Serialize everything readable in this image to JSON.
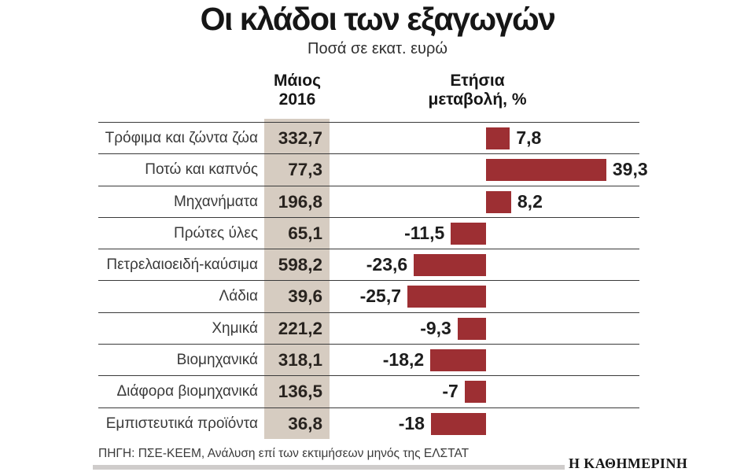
{
  "title": "Οι κλάδοι των εξαγωγών",
  "subtitle": "Ποσά σε εκατ. ευρώ",
  "columns": {
    "value_header": [
      "Μάιος",
      "2016"
    ],
    "change_header": [
      "Ετήσια",
      "μεταβολή, %"
    ]
  },
  "footer": {
    "source": "ΠΗΓΗ: ΠΣΕ-ΚΕΕΜ, Ανάλυση επί των εκτιμήσεων μηνός της ΕΛΣΤΑΤ",
    "brand": "Η ΚΑΘΗΜΕΡΙΝΗ"
  },
  "colors": {
    "bar": "#9D2F33",
    "band": "#D6CCC1",
    "rule": "#3A3A3A"
  },
  "chart_data": {
    "type": "bar",
    "orientation": "horizontal",
    "title": "Οι κλάδοι των εξαγωγών",
    "subtitle": "Ποσά σε εκατ. ευρώ",
    "categories": [
      "Τρόφιμα και ζώντα ζώα",
      "Ποτώ και καπνός",
      "Μηχανήματα",
      "Πρώτες ύλες",
      "Πετρελαιοειδή-καύσιμα",
      "Λάδια",
      "Χημικά",
      "Βιομηχανικά",
      "Διάφορα βιομηχανικά",
      "Εμπιστευτικά προϊόντα"
    ],
    "series": [
      {
        "name": "Μάιος 2016",
        "values": [
          332.7,
          77.3,
          196.8,
          65.1,
          598.2,
          39.6,
          221.2,
          318.1,
          136.5,
          36.8
        ],
        "display": [
          "332,7",
          "77,3",
          "196,8",
          "65,1",
          "598,2",
          "39,6",
          "221,2",
          "318,1",
          "136,5",
          "36,8"
        ]
      },
      {
        "name": "Ετήσια μεταβολή, %",
        "values": [
          7.8,
          39.3,
          8.2,
          -11.5,
          -23.6,
          -25.7,
          -9.3,
          -18.2,
          -7,
          -18
        ],
        "display": [
          "7,8",
          "39,3",
          "8,2",
          "-11,5",
          "-23,6",
          "-25,7",
          "-9,3",
          "-18,2",
          "-7",
          "-18"
        ]
      }
    ],
    "xlim": [
      -26,
      40
    ],
    "grid": false,
    "legend": false
  }
}
